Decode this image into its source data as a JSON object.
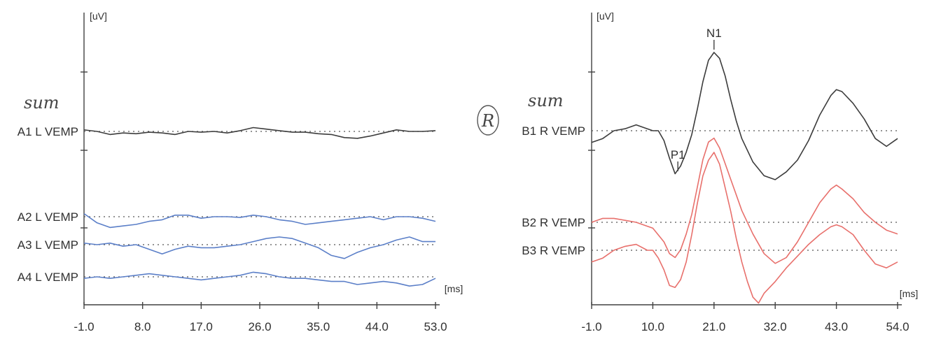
{
  "chart_data": [
    {
      "type": "line",
      "y_unit": "[uV]",
      "x_unit": "[ms]",
      "x_ticks": [
        "-1.0",
        "8.0",
        "17.0",
        "26.0",
        "35.0",
        "44.0",
        "53.0"
      ],
      "xlim": [
        -1.0,
        53.0
      ],
      "annotation": "SUM",
      "series": [
        {
          "name": "A1 L VEMP",
          "color": "#3c3c3c",
          "x": [
            -1,
            1,
            3,
            5,
            7,
            9,
            11,
            13,
            15,
            17,
            19,
            21,
            23,
            25,
            27,
            29,
            31,
            33,
            35,
            37,
            39,
            41,
            43,
            45,
            47,
            49,
            51,
            53
          ],
          "y": [
            0.1,
            0.0,
            -0.2,
            -0.1,
            -0.15,
            -0.05,
            -0.1,
            -0.2,
            0.0,
            -0.05,
            0.0,
            -0.1,
            0.05,
            0.25,
            0.15,
            0.05,
            -0.05,
            -0.05,
            -0.15,
            -0.2,
            -0.4,
            -0.45,
            -0.3,
            -0.1,
            0.1,
            0.0,
            0.0,
            0.05
          ]
        },
        {
          "name": "A2 L VEMP",
          "color": "#5b7fc8",
          "x": [
            -1,
            1,
            3,
            5,
            7,
            9,
            11,
            13,
            15,
            17,
            19,
            21,
            23,
            25,
            27,
            29,
            31,
            33,
            35,
            37,
            39,
            41,
            43,
            45,
            47,
            49,
            51,
            53
          ],
          "y": [
            0.2,
            -0.4,
            -0.7,
            -0.6,
            -0.5,
            -0.3,
            -0.2,
            0.1,
            0.1,
            -0.1,
            0.0,
            0.0,
            -0.05,
            0.1,
            0.0,
            -0.2,
            -0.3,
            -0.5,
            -0.4,
            -0.3,
            -0.2,
            -0.1,
            0.0,
            -0.2,
            0.0,
            0.0,
            -0.1,
            -0.3
          ]
        },
        {
          "name": "A3 L VEMP",
          "color": "#5b7fc8",
          "x": [
            -1,
            1,
            3,
            5,
            7,
            9,
            11,
            13,
            15,
            17,
            19,
            21,
            23,
            25,
            27,
            29,
            31,
            33,
            35,
            37,
            39,
            41,
            43,
            45,
            47,
            49,
            51,
            53
          ],
          "y": [
            0.1,
            0.0,
            0.1,
            -0.1,
            0.0,
            -0.3,
            -0.6,
            -0.3,
            -0.1,
            -0.2,
            -0.2,
            -0.1,
            0.0,
            0.2,
            0.4,
            0.5,
            0.4,
            0.1,
            -0.2,
            -0.7,
            -0.9,
            -0.5,
            -0.2,
            0.0,
            0.3,
            0.5,
            0.2,
            0.2
          ]
        },
        {
          "name": "A4 L VEMP",
          "color": "#5b7fc8",
          "x": [
            -1,
            1,
            3,
            5,
            7,
            9,
            11,
            13,
            15,
            17,
            19,
            21,
            23,
            25,
            27,
            29,
            31,
            33,
            35,
            37,
            39,
            41,
            43,
            45,
            47,
            49,
            51,
            53
          ],
          "y": [
            -0.1,
            0.0,
            -0.1,
            0.0,
            0.1,
            0.2,
            0.1,
            0.0,
            -0.1,
            -0.2,
            -0.1,
            0.0,
            0.1,
            0.3,
            0.2,
            0.0,
            -0.1,
            -0.1,
            -0.2,
            -0.3,
            -0.3,
            -0.5,
            -0.4,
            -0.3,
            -0.4,
            -0.6,
            -0.5,
            -0.1
          ]
        }
      ]
    },
    {
      "type": "line",
      "y_unit": "[uV]",
      "x_unit": "[ms]",
      "x_ticks": [
        "-1.0",
        "10.0",
        "21.0",
        "32.0",
        "43.0",
        "54.0"
      ],
      "xlim": [
        -1.0,
        54.0
      ],
      "annotation": "SUM",
      "side_mark": "R",
      "peaks": [
        {
          "label": "N1",
          "x": 21.0
        },
        {
          "label": "P1",
          "x": 14.5
        }
      ],
      "series": [
        {
          "name": "B1 R VEMP",
          "color": "#3c3c3c",
          "x": [
            -1,
            1,
            3,
            5,
            7,
            9,
            10,
            11,
            12,
            13,
            14,
            15,
            16,
            17,
            18,
            19,
            20,
            21,
            22,
            23,
            24,
            25,
            26,
            28,
            30,
            32,
            34,
            36,
            38,
            40,
            42,
            43,
            44,
            46,
            48,
            50,
            52,
            54
          ],
          "y": [
            -0.6,
            -0.4,
            0.0,
            0.1,
            0.3,
            0.1,
            0.0,
            0.0,
            -0.5,
            -1.4,
            -2.2,
            -1.8,
            -1.1,
            -0.2,
            1.1,
            2.5,
            3.6,
            4.0,
            3.7,
            2.8,
            1.6,
            0.5,
            -0.4,
            -1.6,
            -2.3,
            -2.5,
            -2.1,
            -1.5,
            -0.5,
            0.8,
            1.8,
            2.1,
            2.0,
            1.4,
            0.6,
            -0.4,
            -0.8,
            -0.4
          ]
        },
        {
          "name": "B2 R VEMP",
          "color": "#e8706c",
          "x": [
            -1,
            1,
            3,
            5,
            7,
            9,
            10,
            12,
            13,
            14,
            15,
            16,
            17,
            18,
            19,
            20,
            21,
            22,
            23,
            24,
            25,
            26,
            28,
            30,
            32,
            34,
            36,
            38,
            40,
            42,
            43,
            44,
            46,
            48,
            50,
            52,
            54
          ],
          "y": [
            0.0,
            0.2,
            0.2,
            0.1,
            0.0,
            -0.2,
            -0.3,
            -1.0,
            -1.6,
            -1.8,
            -1.4,
            -0.6,
            0.4,
            1.8,
            3.2,
            4.1,
            4.3,
            3.8,
            3.0,
            2.2,
            1.4,
            0.6,
            -0.6,
            -1.6,
            -2.1,
            -1.8,
            -1.0,
            0.0,
            1.0,
            1.7,
            1.9,
            1.7,
            1.2,
            0.5,
            0.0,
            -0.4,
            -0.6
          ]
        },
        {
          "name": "B3 R VEMP",
          "color": "#e8706c",
          "x": [
            -1,
            1,
            3,
            5,
            7,
            9,
            10,
            11,
            12,
            13,
            14,
            15,
            16,
            17,
            18,
            19,
            20,
            21,
            22,
            23,
            24,
            25,
            26,
            27,
            28,
            29,
            30,
            32,
            34,
            36,
            38,
            40,
            42,
            43,
            44,
            46,
            48,
            50,
            52,
            54
          ],
          "y": [
            -0.6,
            -0.4,
            0.0,
            0.2,
            0.3,
            0.0,
            0.0,
            -0.4,
            -1.0,
            -1.8,
            -1.9,
            -1.5,
            -0.6,
            0.8,
            2.4,
            3.8,
            4.6,
            5.0,
            4.4,
            3.2,
            2.0,
            0.6,
            -0.6,
            -1.6,
            -2.4,
            -2.7,
            -2.2,
            -1.6,
            -0.9,
            -0.3,
            0.3,
            0.8,
            1.2,
            1.3,
            1.2,
            0.8,
            0.0,
            -0.7,
            -0.9,
            -0.6
          ]
        }
      ]
    }
  ]
}
